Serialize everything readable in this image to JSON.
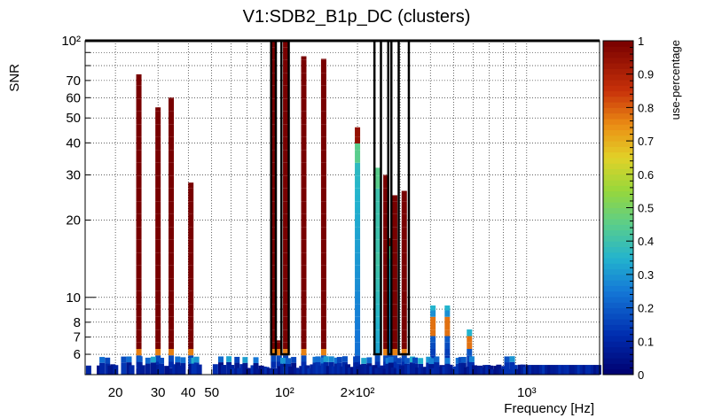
{
  "chart_data": {
    "type": "heatmap",
    "title": "V1:SDB2_B1p_DC (clusters)",
    "xlabel": "Frequency [Hz]",
    "ylabel": "SNR",
    "zlabel": "use-percentage",
    "x_scale": "log",
    "y_scale": "log",
    "xlim": [
      15,
      2000
    ],
    "ylim": [
      5,
      100
    ],
    "zlim": [
      0,
      1
    ],
    "grid": true,
    "colormap": "rainbow (dark blue to dark red)",
    "x_ticks": [
      {
        "value": 20,
        "label": "20"
      },
      {
        "value": 30,
        "label": "30"
      },
      {
        "value": 40,
        "label": "40"
      },
      {
        "value": 50,
        "label": "50"
      },
      {
        "value": 100,
        "label": "10²"
      },
      {
        "value": 200,
        "label": "2×10²"
      },
      {
        "value": 1000,
        "label": "10³"
      }
    ],
    "y_ticks": [
      {
        "value": 6,
        "label": "6"
      },
      {
        "value": 7,
        "label": "7"
      },
      {
        "value": 8,
        "label": "8"
      },
      {
        "value": 10,
        "label": "10"
      },
      {
        "value": 20,
        "label": "20"
      },
      {
        "value": 30,
        "label": "30"
      },
      {
        "value": 40,
        "label": "40"
      },
      {
        "value": 50,
        "label": "50"
      },
      {
        "value": 60,
        "label": "60"
      },
      {
        "value": 70,
        "label": "70"
      },
      {
        "value": 100,
        "label": "10²"
      }
    ],
    "z_ticks": [
      {
        "value": 0,
        "label": "0"
      },
      {
        "value": 0.1,
        "label": "0.1"
      },
      {
        "value": 0.2,
        "label": "0.2"
      },
      {
        "value": 0.3,
        "label": "0.3"
      },
      {
        "value": 0.4,
        "label": "0.4"
      },
      {
        "value": 0.5,
        "label": "0.5"
      },
      {
        "value": 0.6,
        "label": "0.6"
      },
      {
        "value": 0.7,
        "label": "0.7"
      },
      {
        "value": 0.8,
        "label": "0.8"
      },
      {
        "value": 0.9,
        "label": "0.9"
      },
      {
        "value": 1,
        "label": "1"
      }
    ],
    "columns": [
      {
        "x": 25,
        "top": 74,
        "profile": "main"
      },
      {
        "x": 30,
        "top": 55,
        "profile": "main"
      },
      {
        "x": 34,
        "top": 60,
        "profile": "main"
      },
      {
        "x": 41,
        "top": 28,
        "profile": "main"
      },
      {
        "x": 90,
        "top": 100,
        "profile": "main"
      },
      {
        "x": 95,
        "top": 6.8,
        "profile": "main"
      },
      {
        "x": 101,
        "top": 100,
        "profile": "main"
      },
      {
        "x": 120,
        "top": 87,
        "profile": "main"
      },
      {
        "x": 145,
        "top": 85,
        "profile": "main"
      },
      {
        "x": 200,
        "top": 46,
        "profile": "blue"
      },
      {
        "x": 242,
        "top": 32,
        "profile": "mixed"
      },
      {
        "x": 262,
        "top": 30,
        "profile": "main"
      },
      {
        "x": 272,
        "top": 17,
        "profile": "blue"
      },
      {
        "x": 285,
        "top": 25,
        "profile": "main"
      },
      {
        "x": 312,
        "top": 26,
        "profile": "main"
      }
    ],
    "small_peaks": [
      {
        "x": 410,
        "top": 9.3
      },
      {
        "x": 470,
        "top": 9.3
      },
      {
        "x": 580,
        "top": 7.5
      }
    ],
    "highlight_boxes": [
      [
        88,
        92
      ],
      [
        97,
        104
      ],
      [
        235,
        250
      ],
      [
        268,
        276
      ],
      [
        296,
        326
      ]
    ]
  }
}
